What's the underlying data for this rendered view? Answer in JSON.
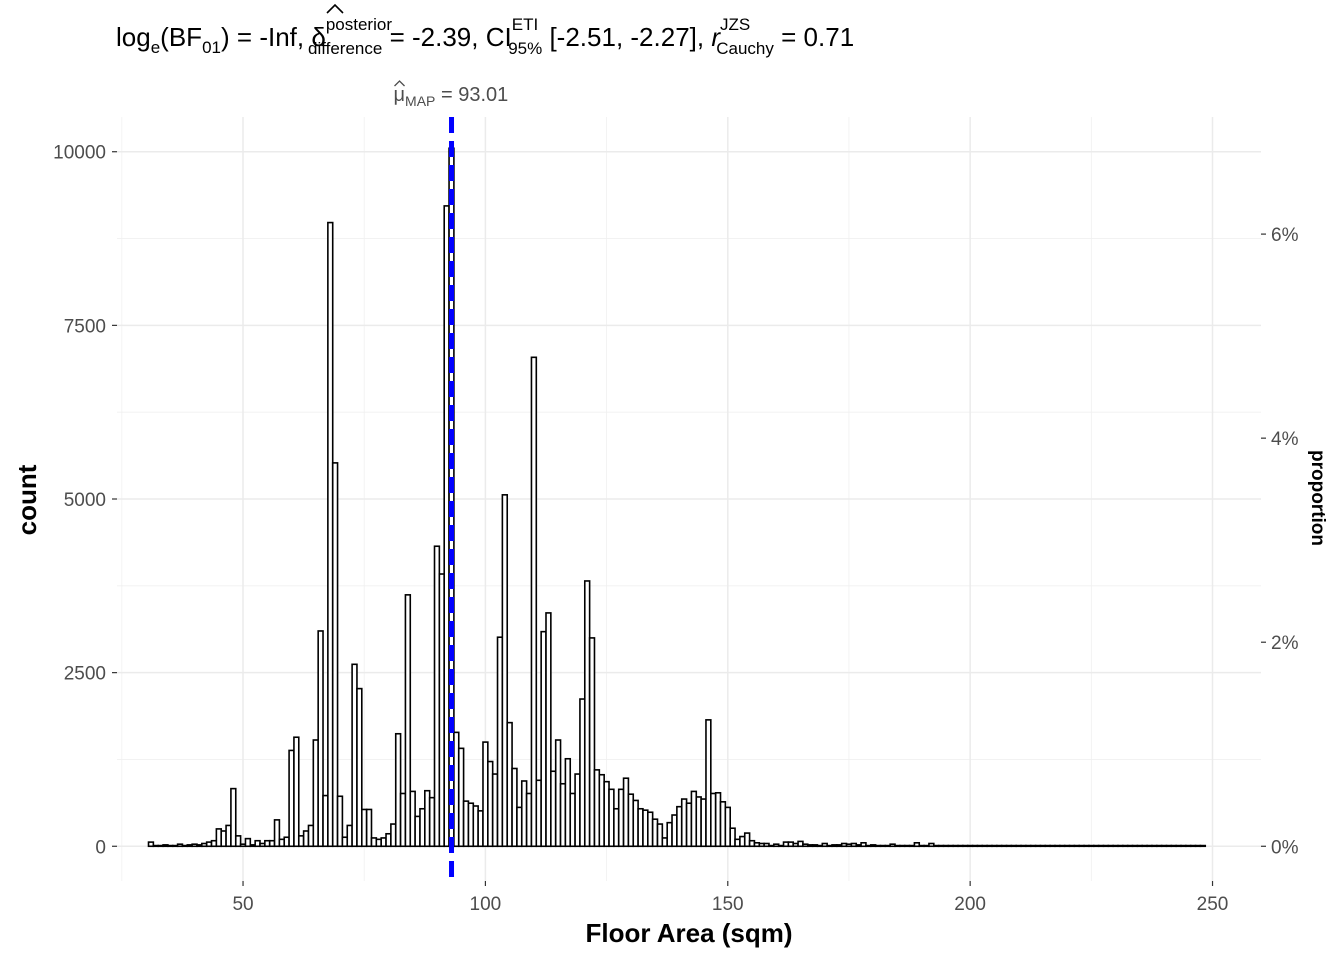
{
  "chart_data": {
    "type": "bar",
    "title": {
      "bf_func": "log",
      "bf_func_sub": "e",
      "bf_name": "BF",
      "bf_sub": "01",
      "bf_value": "-Inf",
      "delta_sym": "δ",
      "delta_sup": "posterior",
      "delta_sub": "difference",
      "delta_value": "-2.39",
      "ci_name": "CI",
      "ci_sup": "ETI",
      "ci_sub": "95%",
      "ci_value": "[-2.51, -2.27]",
      "r_sym": "r",
      "r_sup": "JZS",
      "r_sub": "Cauchy",
      "r_value": "0.71",
      "sep": ",",
      "eq": "="
    },
    "xlabel": "Floor Area (sqm)",
    "ylabel": "count",
    "y2label": "proportion",
    "xlim": [
      24,
      260
    ],
    "ylim": [
      -500,
      10500
    ],
    "xticks": [
      {
        "value": 50,
        "label": "50"
      },
      {
        "value": 100,
        "label": "100"
      },
      {
        "value": 150,
        "label": "150"
      },
      {
        "value": 200,
        "label": "200"
      },
      {
        "value": 250,
        "label": "250"
      }
    ],
    "yticks": [
      {
        "value": 0,
        "label": "0"
      },
      {
        "value": 2500,
        "label": "2500"
      },
      {
        "value": 5000,
        "label": "5000"
      },
      {
        "value": 7500,
        "label": "7500"
      },
      {
        "value": 10000,
        "label": "10000"
      }
    ],
    "y2ticks": [
      {
        "value": 0,
        "count": 0,
        "label": "0%"
      },
      {
        "value": 0.02,
        "count": 2938,
        "label": "2%"
      },
      {
        "value": 0.04,
        "count": 5876,
        "label": "4%"
      },
      {
        "value": 0.06,
        "count": 8814,
        "label": "6%"
      }
    ],
    "grid": true,
    "bin_width": 1,
    "bar_fill": "#ffffff",
    "bar_stroke": "#000000",
    "map_line": {
      "value": 93.01,
      "sym": "μ",
      "sub": "MAP",
      "label": "93.01",
      "color": "#0000ff"
    },
    "bins": [
      [
        31,
        60
      ],
      [
        32,
        10
      ],
      [
        33,
        10
      ],
      [
        34,
        20
      ],
      [
        35,
        10
      ],
      [
        36,
        10
      ],
      [
        37,
        30
      ],
      [
        38,
        10
      ],
      [
        39,
        20
      ],
      [
        40,
        30
      ],
      [
        41,
        20
      ],
      [
        42,
        40
      ],
      [
        43,
        60
      ],
      [
        44,
        80
      ],
      [
        45,
        250
      ],
      [
        46,
        220
      ],
      [
        47,
        300
      ],
      [
        48,
        830
      ],
      [
        49,
        150
      ],
      [
        50,
        30
      ],
      [
        51,
        110
      ],
      [
        52,
        20
      ],
      [
        53,
        80
      ],
      [
        54,
        40
      ],
      [
        55,
        80
      ],
      [
        56,
        80
      ],
      [
        57,
        380
      ],
      [
        58,
        100
      ],
      [
        59,
        130
      ],
      [
        60,
        1380
      ],
      [
        61,
        1570
      ],
      [
        62,
        150
      ],
      [
        63,
        220
      ],
      [
        64,
        300
      ],
      [
        65,
        1530
      ],
      [
        66,
        3100
      ],
      [
        67,
        730
      ],
      [
        68,
        8980
      ],
      [
        69,
        5520
      ],
      [
        70,
        720
      ],
      [
        71,
        130
      ],
      [
        72,
        300
      ],
      [
        73,
        2620
      ],
      [
        74,
        2270
      ],
      [
        75,
        530
      ],
      [
        76,
        530
      ],
      [
        77,
        120
      ],
      [
        78,
        100
      ],
      [
        79,
        120
      ],
      [
        80,
        180
      ],
      [
        81,
        320
      ],
      [
        82,
        1620
      ],
      [
        83,
        760
      ],
      [
        84,
        3620
      ],
      [
        85,
        790
      ],
      [
        86,
        430
      ],
      [
        87,
        540
      ],
      [
        88,
        800
      ],
      [
        89,
        700
      ],
      [
        90,
        4320
      ],
      [
        91,
        3920
      ],
      [
        92,
        9220
      ],
      [
        93,
        10050
      ],
      [
        94,
        1640
      ],
      [
        95,
        1410
      ],
      [
        96,
        650
      ],
      [
        97,
        620
      ],
      [
        98,
        580
      ],
      [
        99,
        510
      ],
      [
        100,
        1500
      ],
      [
        101,
        1220
      ],
      [
        102,
        1040
      ],
      [
        103,
        3010
      ],
      [
        104,
        5060
      ],
      [
        105,
        1780
      ],
      [
        106,
        1120
      ],
      [
        107,
        560
      ],
      [
        108,
        940
      ],
      [
        109,
        760
      ],
      [
        110,
        7040
      ],
      [
        111,
        950
      ],
      [
        112,
        3090
      ],
      [
        113,
        3360
      ],
      [
        114,
        1080
      ],
      [
        115,
        1530
      ],
      [
        116,
        900
      ],
      [
        117,
        1260
      ],
      [
        118,
        760
      ],
      [
        119,
        1040
      ],
      [
        120,
        2120
      ],
      [
        121,
        3820
      ],
      [
        122,
        3000
      ],
      [
        123,
        1100
      ],
      [
        124,
        1030
      ],
      [
        125,
        930
      ],
      [
        126,
        820
      ],
      [
        127,
        540
      ],
      [
        128,
        820
      ],
      [
        129,
        980
      ],
      [
        130,
        750
      ],
      [
        131,
        660
      ],
      [
        132,
        540
      ],
      [
        133,
        520
      ],
      [
        134,
        490
      ],
      [
        135,
        390
      ],
      [
        136,
        320
      ],
      [
        137,
        120
      ],
      [
        138,
        340
      ],
      [
        139,
        450
      ],
      [
        140,
        570
      ],
      [
        141,
        680
      ],
      [
        142,
        620
      ],
      [
        143,
        790
      ],
      [
        144,
        710
      ],
      [
        145,
        680
      ],
      [
        146,
        1820
      ],
      [
        147,
        760
      ],
      [
        148,
        770
      ],
      [
        149,
        640
      ],
      [
        150,
        560
      ],
      [
        151,
        260
      ],
      [
        152,
        100
      ],
      [
        153,
        140
      ],
      [
        154,
        190
      ],
      [
        155,
        80
      ],
      [
        156,
        50
      ],
      [
        157,
        40
      ],
      [
        158,
        40
      ],
      [
        159,
        10
      ],
      [
        160,
        30
      ],
      [
        161,
        10
      ],
      [
        162,
        60
      ],
      [
        163,
        60
      ],
      [
        164,
        40
      ],
      [
        165,
        70
      ],
      [
        166,
        30
      ],
      [
        167,
        20
      ],
      [
        168,
        20
      ],
      [
        169,
        10
      ],
      [
        170,
        40
      ],
      [
        171,
        10
      ],
      [
        172,
        20
      ],
      [
        173,
        20
      ],
      [
        174,
        40
      ],
      [
        175,
        30
      ],
      [
        176,
        40
      ],
      [
        177,
        20
      ],
      [
        178,
        50
      ],
      [
        179,
        10
      ],
      [
        180,
        20
      ],
      [
        181,
        10
      ],
      [
        182,
        10
      ],
      [
        183,
        10
      ],
      [
        184,
        30
      ],
      [
        185,
        10
      ],
      [
        186,
        10
      ],
      [
        187,
        10
      ],
      [
        188,
        10
      ],
      [
        189,
        50
      ],
      [
        190,
        10
      ],
      [
        191,
        10
      ],
      [
        192,
        40
      ],
      [
        193,
        10
      ],
      [
        194,
        10
      ],
      [
        195,
        10
      ],
      [
        196,
        10
      ],
      [
        197,
        10
      ],
      [
        198,
        10
      ],
      [
        199,
        10
      ],
      [
        200,
        10
      ],
      [
        201,
        10
      ],
      [
        202,
        10
      ],
      [
        203,
        10
      ],
      [
        204,
        10
      ],
      [
        205,
        10
      ],
      [
        206,
        10
      ],
      [
        207,
        10
      ],
      [
        208,
        10
      ],
      [
        209,
        10
      ],
      [
        210,
        10
      ],
      [
        211,
        10
      ],
      [
        212,
        10
      ],
      [
        213,
        10
      ],
      [
        214,
        10
      ],
      [
        215,
        10
      ],
      [
        216,
        10
      ],
      [
        217,
        10
      ],
      [
        218,
        10
      ],
      [
        219,
        10
      ],
      [
        220,
        10
      ],
      [
        221,
        10
      ],
      [
        222,
        10
      ],
      [
        223,
        10
      ],
      [
        224,
        10
      ],
      [
        225,
        10
      ],
      [
        226,
        10
      ],
      [
        227,
        10
      ],
      [
        228,
        10
      ],
      [
        229,
        10
      ],
      [
        230,
        10
      ],
      [
        231,
        10
      ],
      [
        232,
        10
      ],
      [
        233,
        10
      ],
      [
        234,
        10
      ],
      [
        235,
        10
      ],
      [
        236,
        10
      ],
      [
        237,
        10
      ],
      [
        238,
        10
      ],
      [
        239,
        10
      ],
      [
        240,
        10
      ],
      [
        241,
        10
      ],
      [
        242,
        10
      ],
      [
        243,
        10
      ],
      [
        244,
        10
      ],
      [
        245,
        10
      ],
      [
        246,
        10
      ],
      [
        247,
        10
      ],
      [
        248,
        10
      ]
    ]
  }
}
